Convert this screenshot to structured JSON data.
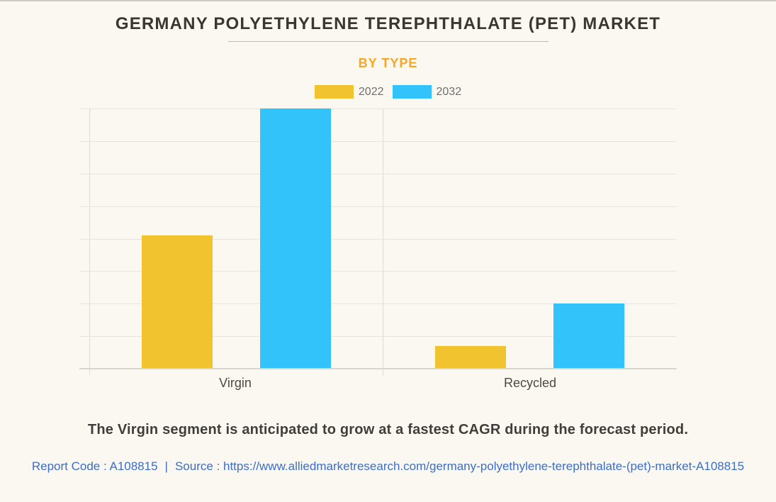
{
  "header": {
    "title": "GERMANY POLYETHYLENE TEREPHTHALATE (PET) MARKET",
    "subtitle": "BY TYPE"
  },
  "footer": {
    "description": "The Virgin segment is anticipated to grow at a fastest CAGR during the forecast period.",
    "report_code": "Report Code : A108815",
    "separator": "|",
    "source": "Source : https://www.alliedmarketresearch.com/germany-polyethylene-terephthalate-(pet)-market-A108815"
  },
  "colors": {
    "series_2022": "#f1c42f",
    "series_2032": "#31c3f9",
    "subtitle_accent": "#f6a723",
    "link_blue": "#3c6ec6",
    "background": "#faf8f1"
  },
  "chart_data": {
    "type": "bar",
    "title": "GERMANY POLYETHYLENE TEREPHTHALATE (PET) MARKET",
    "subtitle": "BY TYPE",
    "categories": [
      "Virgin",
      "Recycled"
    ],
    "series": [
      {
        "name": "2022",
        "color": "#f1c42f",
        "values": [
          4.1,
          0.7
        ]
      },
      {
        "name": "2032",
        "color": "#31c3f9",
        "values": [
          8.0,
          2.0
        ]
      }
    ],
    "xlabel": "",
    "ylabel": "",
    "ylim": [
      0,
      8
    ],
    "y_gridline_intervals": 8,
    "y_tick_labels": [],
    "grid": true,
    "legend_position": "top"
  }
}
